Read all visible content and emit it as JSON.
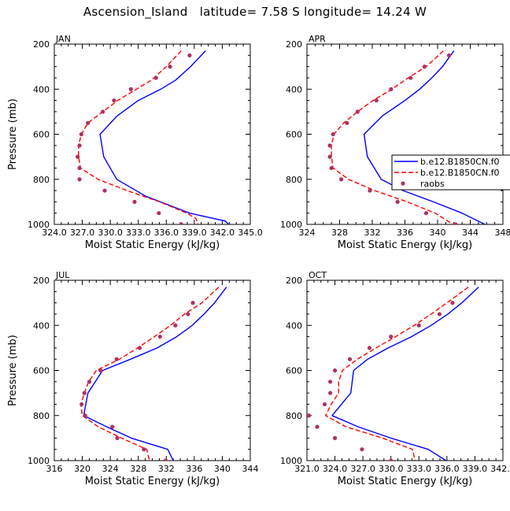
{
  "figure": {
    "title": "Ascension_Island   latitude= 7.58 S longitude= 14.24 W"
  },
  "colors": {
    "model1": "#0000ff",
    "model2": "#ff0000",
    "obs": "#b03060"
  },
  "legend": {
    "entries": [
      "b.e12.B1850CN.f0",
      "b.e12.B1850CN.f0",
      "raobs"
    ]
  },
  "chart_data": [
    {
      "type": "line",
      "panel_label": "JAN",
      "xlabel": "Moist Static Energy (kJ/kg)",
      "ylabel": "Pressure (mb)",
      "xlim": [
        324.0,
        345.0
      ],
      "ylim": [
        1000,
        200
      ],
      "xticks": [
        "324.0",
        "327.0",
        "330.0",
        "333.0",
        "336.0",
        "339.0",
        "342.0",
        "345.0"
      ],
      "yticks": [
        "200",
        "400",
        "600",
        "800",
        "1000"
      ],
      "series": [
        {
          "style": "solid",
          "color": "#0000ff",
          "p": [
            230,
            300,
            360,
            400,
            450,
            520,
            600,
            700,
            800,
            875,
            950,
            985,
            1000
          ],
          "x": [
            340.2,
            338.6,
            337.0,
            335.4,
            333.0,
            330.7,
            328.9,
            329.3,
            330.7,
            333.8,
            338.5,
            342.3,
            342.7
          ]
        },
        {
          "style": "dashed",
          "color": "#ff0000",
          "p": [
            230,
            300,
            360,
            400,
            450,
            500,
            550,
            600,
            650,
            700,
            750,
            800,
            850,
            900,
            950,
            975,
            1000
          ],
          "x": [
            337.6,
            336.0,
            334.4,
            332.8,
            330.8,
            329.2,
            327.6,
            326.9,
            326.6,
            326.6,
            326.8,
            328.7,
            331.8,
            335.3,
            338.2,
            339.2,
            339.4
          ]
        },
        {
          "style": "markers",
          "color": "#b03060",
          "p": [
            250,
            300,
            350,
            400,
            450,
            500,
            550,
            600,
            650,
            700,
            750,
            800,
            850,
            900,
            950,
            1000
          ],
          "x": [
            338.5,
            336.4,
            334.9,
            332.2,
            330.4,
            329.2,
            327.6,
            326.9,
            326.7,
            326.5,
            326.7,
            326.7,
            329.4,
            332.6,
            335.2,
            337.6
          ]
        }
      ]
    },
    {
      "type": "line",
      "panel_label": "APR",
      "xlabel": "Moist Static Energy (kJ/kg)",
      "ylabel": "",
      "xlim": [
        324,
        348
      ],
      "ylim": [
        1000,
        200
      ],
      "xticks": [
        "324",
        "328",
        "332",
        "336",
        "340",
        "344",
        "348"
      ],
      "yticks": [
        "200",
        "400",
        "600",
        "800",
        "1000"
      ],
      "series": [
        {
          "style": "solid",
          "color": "#0000ff",
          "p": [
            230,
            300,
            350,
            400,
            450,
            520,
            600,
            700,
            800,
            850,
            900,
            950,
            1000
          ],
          "x": [
            342.0,
            340.6,
            339.3,
            337.8,
            336.0,
            333.2,
            331.0,
            331.4,
            333.1,
            335.8,
            339.5,
            343.0,
            345.8
          ]
        },
        {
          "style": "dashed",
          "color": "#ff0000",
          "p": [
            230,
            300,
            350,
            400,
            450,
            500,
            550,
            600,
            650,
            700,
            750,
            800,
            850,
            900,
            950,
            1000
          ],
          "x": [
            340.7,
            338.6,
            336.4,
            334.4,
            332.1,
            330.2,
            328.5,
            327.3,
            327.0,
            327.0,
            327.2,
            329.1,
            332.3,
            336.3,
            339.7,
            341.9
          ]
        },
        {
          "style": "markers",
          "color": "#b03060",
          "p": [
            250,
            300,
            350,
            400,
            450,
            500,
            550,
            600,
            650,
            700,
            750,
            800,
            850,
            900,
            950,
            1000
          ],
          "x": [
            341.4,
            338.4,
            336.7,
            334.3,
            332.5,
            330.2,
            328.9,
            327.2,
            326.8,
            326.8,
            327.0,
            328.2,
            331.7,
            335.1,
            338.6,
            342.2
          ]
        }
      ]
    },
    {
      "type": "line",
      "panel_label": "JUL",
      "xlabel": "Moist Static Energy (kJ/kg)",
      "ylabel": "Pressure (mb)",
      "xlim": [
        316,
        344
      ],
      "ylim": [
        1000,
        200
      ],
      "xticks": [
        "316",
        "320",
        "324",
        "328",
        "332",
        "336",
        "340",
        "344"
      ],
      "yticks": [
        "200",
        "400",
        "600",
        "800",
        "1000"
      ],
      "series": [
        {
          "style": "solid",
          "color": "#0000ff",
          "p": [
            230,
            300,
            350,
            400,
            450,
            500,
            550,
            600,
            700,
            800,
            850,
            900,
            950,
            1000
          ],
          "x": [
            340.6,
            338.9,
            337.4,
            335.7,
            333.5,
            330.7,
            326.9,
            322.9,
            320.8,
            320.2,
            323.5,
            327.0,
            332.2,
            333.0
          ]
        },
        {
          "style": "dashed",
          "color": "#ff0000",
          "p": [
            230,
            300,
            350,
            400,
            450,
            500,
            550,
            600,
            650,
            700,
            750,
            800,
            850,
            900,
            950,
            1000
          ],
          "x": [
            339.5,
            337.1,
            334.6,
            332.6,
            330.3,
            327.9,
            325.3,
            322.0,
            320.9,
            320.3,
            319.8,
            320.0,
            322.3,
            325.6,
            329.2,
            329.6
          ]
        },
        {
          "style": "markers",
          "color": "#b03060",
          "p": [
            300,
            350,
            400,
            450,
            500,
            550,
            600,
            650,
            700,
            750,
            800,
            850,
            900,
            950,
            1000
          ],
          "x": [
            335.8,
            335.1,
            333.3,
            331.1,
            328.2,
            324.9,
            322.6,
            321.0,
            320.3,
            319.9,
            320.4,
            324.3,
            325.0,
            328.8,
            331.9
          ]
        }
      ]
    },
    {
      "type": "line",
      "panel_label": "OCT",
      "xlabel": "Moist Static Energy (kJ/kg)",
      "ylabel": "",
      "xlim": [
        321.0,
        342.0
      ],
      "ylim": [
        1000,
        200
      ],
      "xticks": [
        "321.0",
        "324.0",
        "327.0",
        "330.0",
        "333.0",
        "336.0",
        "339.0",
        "342.0"
      ],
      "yticks": [
        "200",
        "400",
        "600",
        "800",
        "1000"
      ],
      "series": [
        {
          "style": "solid",
          "color": "#0000ff",
          "p": [
            230,
            300,
            350,
            400,
            450,
            500,
            550,
            600,
            700,
            800,
            850,
            900,
            950,
            1000
          ],
          "x": [
            339.4,
            337.6,
            336.1,
            334.3,
            332.2,
            329.7,
            327.5,
            326.0,
            325.7,
            323.7,
            326.5,
            330.0,
            334.0,
            335.9
          ]
        },
        {
          "style": "dashed",
          "color": "#ff0000",
          "p": [
            230,
            300,
            350,
            400,
            450,
            500,
            550,
            600,
            650,
            700,
            750,
            800,
            850,
            900,
            950,
            1000
          ],
          "x": [
            338.3,
            336.0,
            334.3,
            332.5,
            330.5,
            328.4,
            326.4,
            324.8,
            324.4,
            324.4,
            323.6,
            323.0,
            325.2,
            329.1,
            332.3,
            332.6
          ]
        },
        {
          "style": "markers",
          "color": "#b03060",
          "p": [
            300,
            350,
            400,
            450,
            500,
            550,
            600,
            650,
            700,
            750,
            800,
            850,
            900,
            950,
            1000
          ],
          "x": [
            336.6,
            335.2,
            333.0,
            330.0,
            327.7,
            325.6,
            324.0,
            323.5,
            323.5,
            322.9,
            321.2,
            322.1,
            324.0,
            326.9,
            330.0
          ]
        }
      ]
    }
  ]
}
